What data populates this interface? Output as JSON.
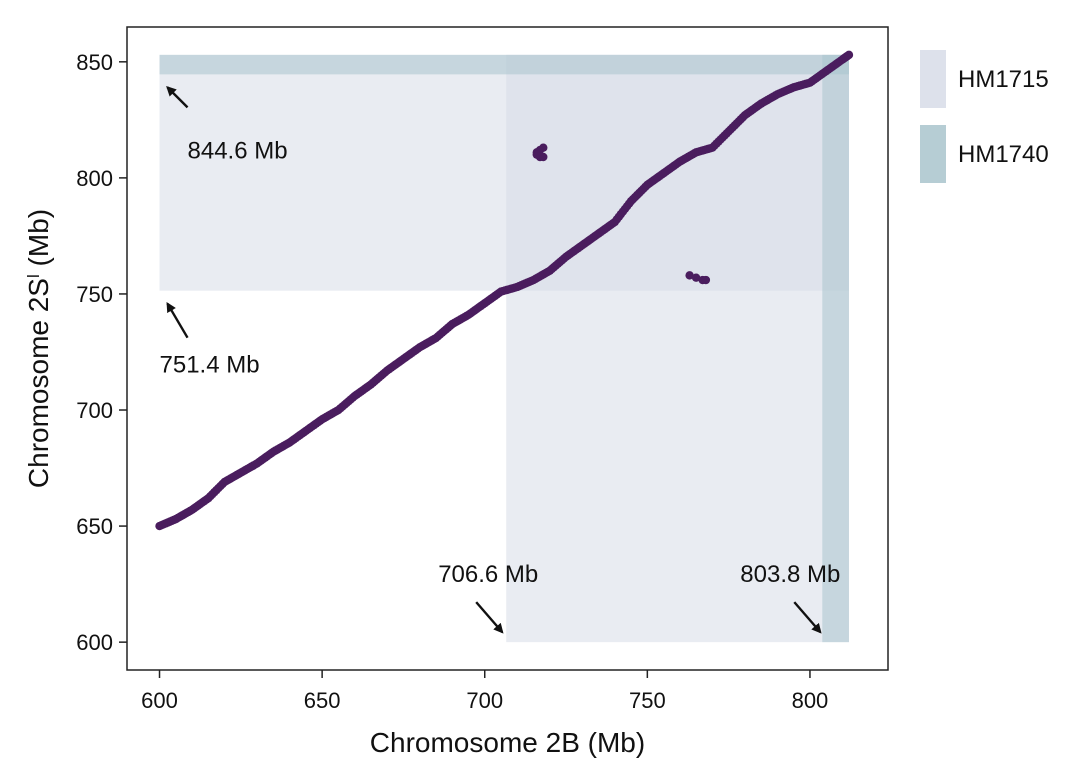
{
  "chart_data": {
    "type": "scatter",
    "xlabel": "Chromosome 2B (Mb)",
    "ylabel_main": "Chromosome 2S",
    "ylabel_sup": "l",
    "ylabel_unit": " (Mb)",
    "xlim": [
      590,
      824
    ],
    "ylim": [
      588,
      865
    ],
    "xticks": [
      600,
      650,
      700,
      750,
      800
    ],
    "yticks": [
      600,
      650,
      700,
      750,
      800,
      850
    ],
    "xtick_labels": [
      "600",
      "650",
      "700",
      "750",
      "800"
    ],
    "ytick_labels": [
      "600",
      "650",
      "700",
      "750",
      "800",
      "850"
    ],
    "grid": false,
    "legend_position": "top-right",
    "legend": [
      {
        "label": "HM1715",
        "color": "#d7dce8"
      },
      {
        "label": "HM1740",
        "color": "#a9c4cd"
      }
    ],
    "regions": [
      {
        "name": "HM1715",
        "axis": "y",
        "from": 751.4,
        "to": 853,
        "color": "#d7dce8"
      },
      {
        "name": "HM1715",
        "axis": "x",
        "from": 706.6,
        "to": 812,
        "color": "#d7dce8"
      },
      {
        "name": "HM1740",
        "axis": "y",
        "from": 844.6,
        "to": 853,
        "color": "#a9c4cd"
      },
      {
        "name": "HM1740",
        "axis": "x",
        "from": 803.8,
        "to": 812,
        "color": "#a9c4cd"
      }
    ],
    "series": [
      {
        "color": "#4a1d5e",
        "points": [
          [
            600,
            650
          ],
          [
            605,
            653
          ],
          [
            610,
            657
          ],
          [
            615,
            662
          ],
          [
            620,
            669
          ],
          [
            625,
            673
          ],
          [
            630,
            677
          ],
          [
            635,
            682
          ],
          [
            640,
            686
          ],
          [
            645,
            691
          ],
          [
            650,
            696
          ],
          [
            655,
            700
          ],
          [
            660,
            706
          ],
          [
            665,
            711
          ],
          [
            670,
            717
          ],
          [
            675,
            722
          ],
          [
            680,
            727
          ],
          [
            685,
            731
          ],
          [
            690,
            737
          ],
          [
            695,
            741
          ],
          [
            700,
            746
          ],
          [
            705,
            751
          ],
          [
            710,
            753
          ],
          [
            715,
            756
          ],
          [
            720,
            760
          ],
          [
            725,
            766
          ],
          [
            730,
            771
          ],
          [
            735,
            776
          ],
          [
            740,
            781
          ],
          [
            745,
            790
          ],
          [
            750,
            797
          ],
          [
            755,
            802
          ],
          [
            760,
            807
          ],
          [
            765,
            811
          ],
          [
            770,
            813
          ],
          [
            775,
            820
          ],
          [
            780,
            827
          ],
          [
            785,
            832
          ],
          [
            790,
            836
          ],
          [
            795,
            839
          ],
          [
            800,
            841
          ],
          [
            805,
            846
          ],
          [
            810,
            851
          ],
          [
            812,
            853
          ]
        ]
      },
      {
        "color": "#4a1d5e",
        "points": [
          [
            716,
            811
          ],
          [
            717,
            812
          ],
          [
            718,
            813
          ],
          [
            717,
            809
          ],
          [
            716,
            810
          ],
          [
            718,
            809
          ]
        ]
      },
      {
        "color": "#4a1d5e",
        "points": [
          [
            763,
            758
          ],
          [
            765,
            757
          ],
          [
            767,
            756
          ],
          [
            768,
            756
          ]
        ]
      }
    ],
    "annotations": [
      {
        "text": "844.6 Mb",
        "x": 600,
        "y": 844.6
      },
      {
        "text": "751.4 Mb",
        "x": 600,
        "y": 751.4
      },
      {
        "text": "706.6 Mb",
        "x": 706.6,
        "y": 600
      },
      {
        "text": "803.8 Mb",
        "x": 803.8,
        "y": 600
      }
    ]
  }
}
